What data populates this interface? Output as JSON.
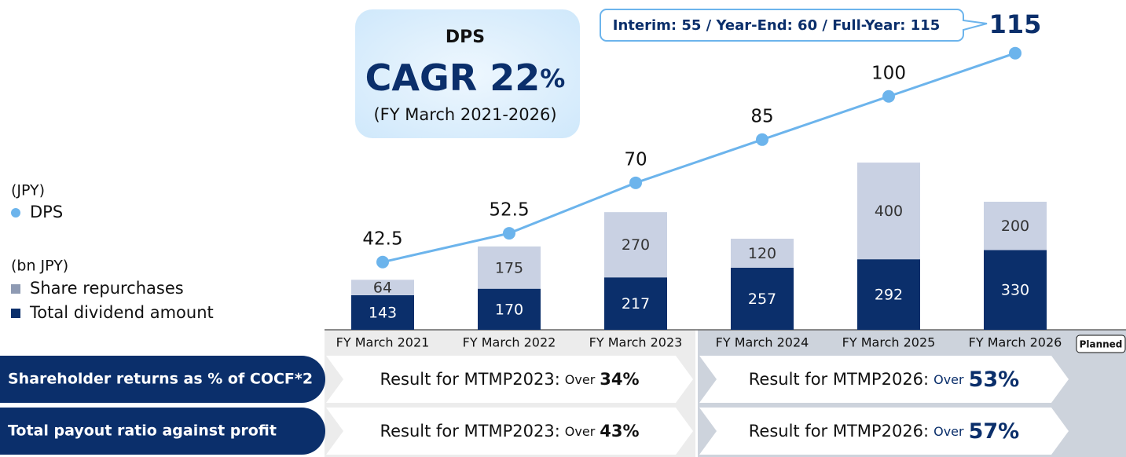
{
  "chart_data": {
    "type": "bar",
    "categories": [
      "FY March 2021",
      "FY March 2022",
      "FY March 2023",
      "FY March 2024",
      "FY March 2025",
      "FY March 2026"
    ],
    "series": [
      {
        "name": "Total dividend amount",
        "color": "#0b2f6b",
        "values": [
          143,
          170,
          217,
          257,
          292,
          330
        ]
      },
      {
        "name": "Share repurchases",
        "color": "#c9d1e3",
        "values": [
          64,
          175,
          270,
          120,
          400,
          200
        ]
      },
      {
        "name": "DPS",
        "type": "line",
        "axis": "y2",
        "color": "#6cb4ec",
        "values": [
          42.5,
          52.5,
          70,
          85,
          100,
          115
        ]
      }
    ],
    "ylim": [
      0,
      1300
    ],
    "y2lim": [
      19,
      128
    ],
    "y_unit": "(bn JPY)",
    "y2_unit": "(JPY)",
    "badge": "Planned",
    "callout": "Interim: 55 / Year-End: 60 / Full-Year: 115",
    "cagr": {
      "title": "DPS",
      "headline": "CAGR 22",
      "suffix": "%",
      "period": "(FY March 2021-2026)"
    }
  },
  "table": {
    "rows": [
      {
        "label": "Shareholder returns as % of COCF*2",
        "cells": [
          {
            "prefix": "Result for MTMP2023:",
            "qualifier": "Over",
            "value": "34%"
          },
          {
            "prefix": "Result for MTMP2026:",
            "qualifier": "Over",
            "value": "53%"
          }
        ]
      },
      {
        "label": "Total payout ratio against profit",
        "cells": [
          {
            "prefix": "Result for MTMP2023:",
            "qualifier": "Over",
            "value": "43%"
          },
          {
            "prefix": "Result for MTMP2026:",
            "qualifier": "Over",
            "value": "57%"
          }
        ]
      }
    ]
  }
}
